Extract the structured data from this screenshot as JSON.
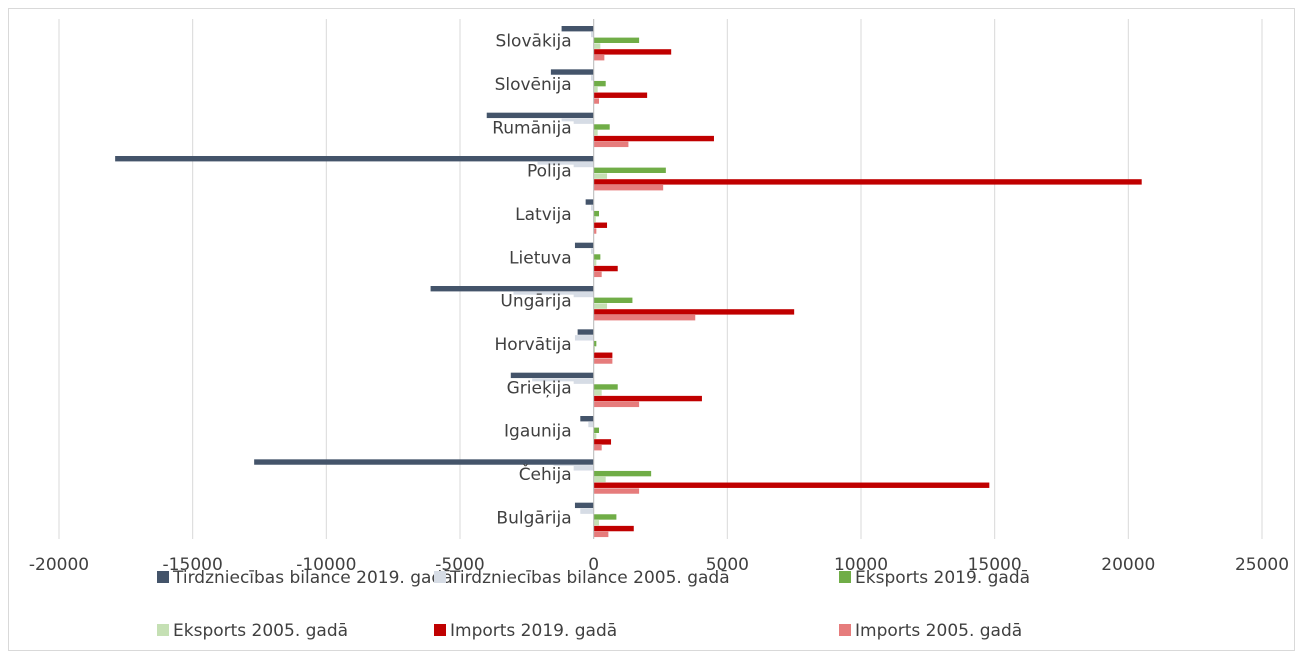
{
  "chart_data": {
    "type": "bar",
    "orientation": "horizontal",
    "title": "",
    "xlabel": "",
    "ylabel": "",
    "xlim": [
      -20000,
      25000
    ],
    "xticks": [
      -20000,
      -15000,
      -10000,
      -5000,
      0,
      5000,
      10000,
      15000,
      20000,
      25000
    ],
    "grid": "vertical",
    "legend_position": "bottom",
    "categories": [
      "Slovākija",
      "Slovēnija",
      "Rumānija",
      "Polija",
      "Latvija",
      "Lietuva",
      "Ungārija",
      "Horvātija",
      "Grieķija",
      "Igaunija",
      "Čehija",
      "Bulgārija"
    ],
    "series": [
      {
        "name": "Tirdzniecības bilance 2019. gadā",
        "color": "#44546a",
        "values": [
          -1200,
          -1600,
          -4000,
          -17900,
          -300,
          -700,
          -6100,
          -600,
          -3100,
          -500,
          -12700,
          -700
        ]
      },
      {
        "name": "Tirdzniecības bilance 2005. gadā",
        "color": "#d6dce5",
        "values": [
          -100,
          -100,
          -1200,
          -2100,
          -100,
          -100,
          -3000,
          -700,
          -2300,
          -200,
          -1500,
          -500
        ]
      },
      {
        "name": "Eksports 2019. gadā",
        "color": "#70ad47",
        "values": [
          1700,
          450,
          600,
          2700,
          200,
          250,
          1450,
          100,
          900,
          200,
          2150,
          850
        ]
      },
      {
        "name": "Eksports 2005. gadā",
        "color": "#c5e0b4",
        "values": [
          250,
          150,
          150,
          500,
          80,
          100,
          500,
          50,
          300,
          100,
          450,
          200
        ]
      },
      {
        "name": "Imports 2019. gadā",
        "color": "#c00000",
        "values": [
          2900,
          2000,
          4500,
          20500,
          500,
          900,
          7500,
          700,
          4050,
          650,
          14800,
          1500
        ]
      },
      {
        "name": "Imports 2005. gadā",
        "color": "#e67c7c",
        "values": [
          400,
          200,
          1300,
          2600,
          100,
          300,
          3800,
          700,
          1700,
          300,
          1700,
          550
        ]
      }
    ]
  }
}
